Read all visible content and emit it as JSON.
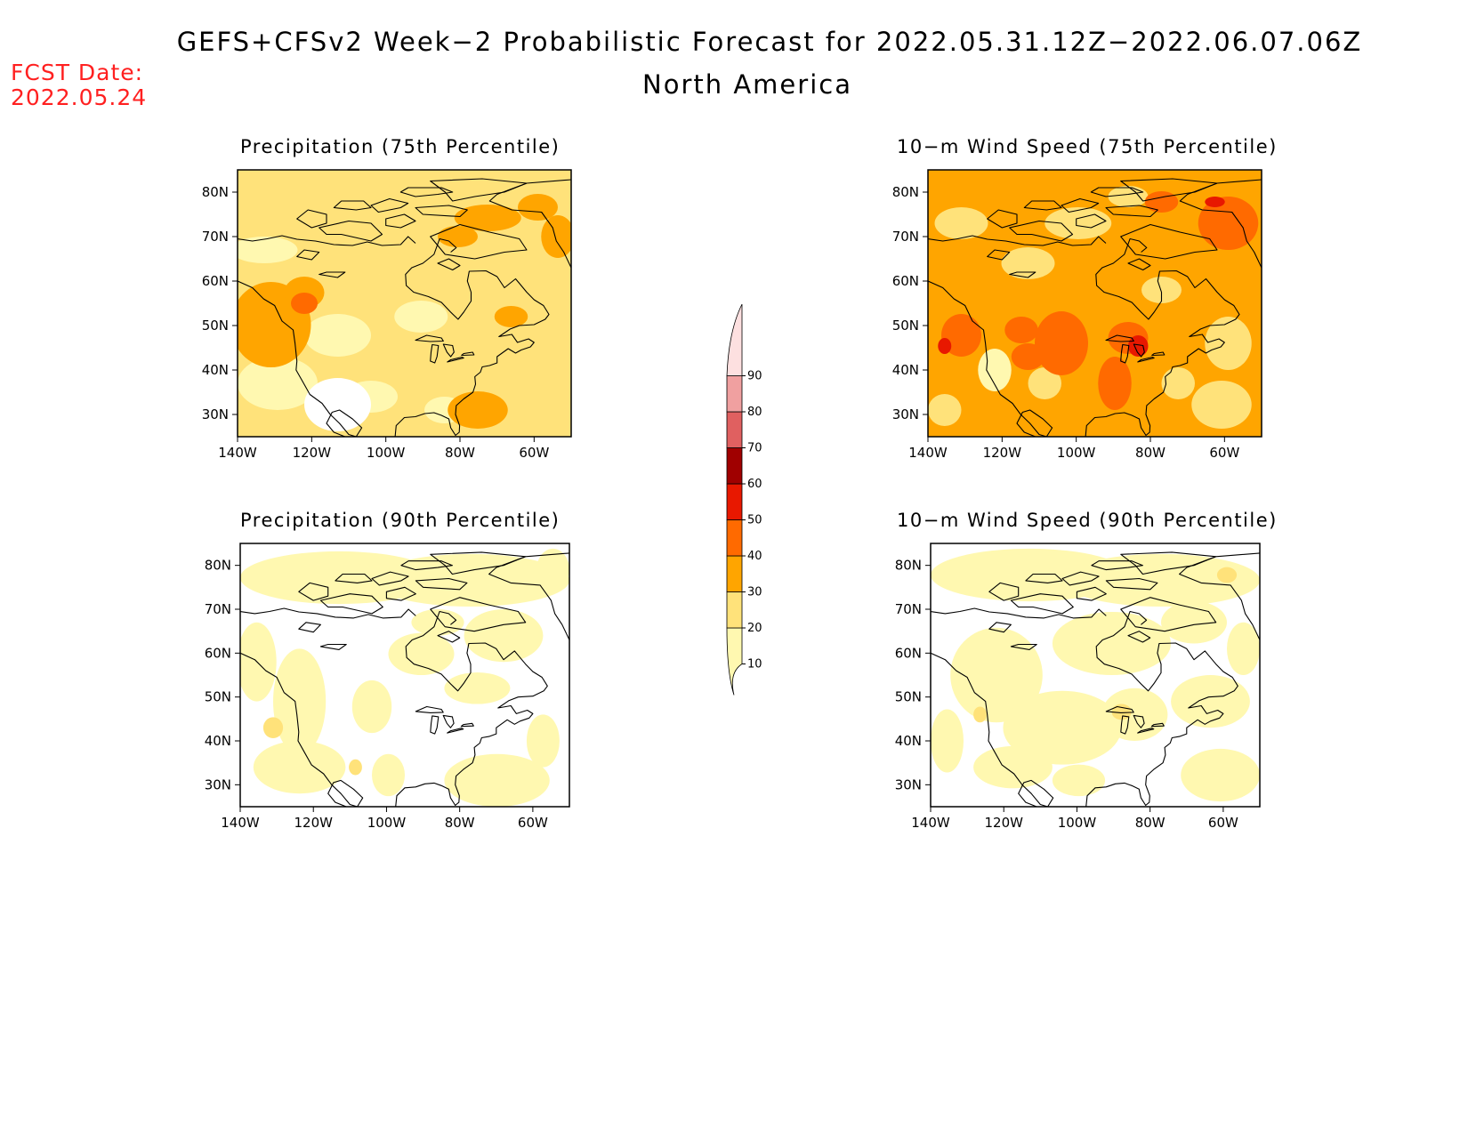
{
  "header": {
    "title": "GEFS+CFSv2 Week−2 Probabilistic Forecast for 2022.05.31.12Z−2022.06.07.06Z",
    "subtitle": "North America",
    "fcst_label": "FCST Date:",
    "fcst_date": "2022.05.24"
  },
  "panels": [
    {
      "id": "precip75",
      "title": "Precipitation (75th Percentile)"
    },
    {
      "id": "wind75",
      "title": "10−m Wind Speed (75th Percentile)"
    },
    {
      "id": "precip90",
      "title": "Precipitation (90th Percentile)"
    },
    {
      "id": "wind90",
      "title": "10−m Wind Speed (90th Percentile)"
    }
  ],
  "axes": {
    "lat_labels": [
      "30N",
      "40N",
      "50N",
      "60N",
      "70N",
      "80N"
    ],
    "lon_labels": [
      "140W",
      "120W",
      "100W",
      "80W",
      "60W"
    ]
  },
  "colorbar": {
    "levels": [
      "10",
      "20",
      "30",
      "40",
      "50",
      "60",
      "70",
      "80",
      "90"
    ],
    "colors": [
      "#fff8b0",
      "#ffe27a",
      "#ffa500",
      "#ff6a00",
      "#e81800",
      "#a00000",
      "#e06060",
      "#f0a0a0",
      "#fde0e0"
    ]
  }
}
